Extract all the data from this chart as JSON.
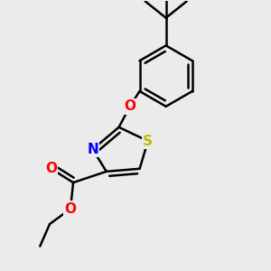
{
  "bg_color": "#ebebeb",
  "bond_color": "#000000",
  "bond_width": 1.8,
  "atom_colors": {
    "O": "#ff0000",
    "N": "#0000ff",
    "S": "#bbbb00",
    "C": "#000000"
  },
  "font_size": 11,
  "figsize": [
    3.0,
    3.0
  ],
  "dpi": 100
}
